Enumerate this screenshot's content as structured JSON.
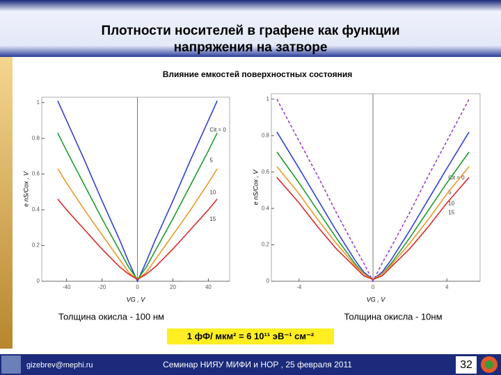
{
  "header": {
    "title_lines": [
      "Плотности носителей в графене как функции",
      "напряжения на затворе"
    ]
  },
  "subtitle": "Влияние емкостей поверхностных  состояния",
  "chart_data": [
    {
      "type": "line",
      "caption": "Толщина окисла  - 100 нм",
      "xlabel": "VG , V",
      "ylabel": "e nS/Cox , V",
      "x": [
        -45,
        -40,
        -30,
        -20,
        -10,
        -5,
        0,
        5,
        10,
        20,
        30,
        40,
        45
      ],
      "xlim": [
        -54,
        52
      ],
      "ylim": [
        0,
        1.03
      ],
      "xticks": [
        -40,
        -20,
        0,
        20,
        40
      ],
      "yticks": [
        0,
        0.2,
        0.4,
        0.6,
        0.8,
        1
      ],
      "series": [
        {
          "name": "Cit = 0",
          "color": "#2f3fd8",
          "values": [
            1.01,
            0.9,
            0.68,
            0.45,
            0.23,
            0.11,
            0,
            0.11,
            0.23,
            0.45,
            0.68,
            0.9,
            1.01
          ]
        },
        {
          "name": "5",
          "color": "#1e9a2a",
          "values": [
            0.83,
            0.73,
            0.54,
            0.35,
            0.17,
            0.08,
            0.01,
            0.08,
            0.17,
            0.35,
            0.54,
            0.73,
            0.83
          ]
        },
        {
          "name": "10",
          "color": "#e89a2a",
          "values": [
            0.63,
            0.55,
            0.4,
            0.26,
            0.12,
            0.05,
            0.01,
            0.05,
            0.12,
            0.26,
            0.4,
            0.55,
            0.63
          ]
        },
        {
          "name": "15",
          "color": "#d82a2a",
          "values": [
            0.46,
            0.4,
            0.29,
            0.18,
            0.08,
            0.04,
            0.01,
            0.04,
            0.08,
            0.18,
            0.29,
            0.4,
            0.46
          ]
        }
      ]
    },
    {
      "type": "line",
      "caption": "Толщина окисла  - 10нм",
      "xlabel": "VG , V",
      "ylabel": "e nS/Cox , V",
      "x": [
        -5.2,
        -4,
        -3,
        -2,
        -1,
        -0.5,
        0,
        0.5,
        1,
        2,
        3,
        4,
        5.2
      ],
      "xlim": [
        -5.5,
        5.8
      ],
      "ylim": [
        0,
        1.03
      ],
      "xticks": [
        -4,
        0,
        4
      ],
      "yticks": [
        0,
        0.2,
        0.4,
        0.6,
        0.8,
        1
      ],
      "series": [
        {
          "color": "#9a3ad0",
          "dashed": true,
          "values": [
            1,
            0.77,
            0.58,
            0.38,
            0.19,
            0.1,
            0,
            0.1,
            0.19,
            0.38,
            0.58,
            0.77,
            1
          ]
        },
        {
          "name": "Cit = 0",
          "color": "#2f3fd8",
          "values": [
            0.82,
            0.62,
            0.45,
            0.28,
            0.12,
            0.05,
            0.01,
            0.05,
            0.12,
            0.28,
            0.45,
            0.62,
            0.82
          ]
        },
        {
          "name": "5",
          "color": "#1e9a2a",
          "values": [
            0.71,
            0.54,
            0.39,
            0.24,
            0.1,
            0.04,
            0.01,
            0.04,
            0.1,
            0.24,
            0.39,
            0.54,
            0.71
          ]
        },
        {
          "name": "10",
          "color": "#e89a2a",
          "values": [
            0.63,
            0.48,
            0.34,
            0.21,
            0.09,
            0.04,
            0.01,
            0.04,
            0.09,
            0.21,
            0.34,
            0.48,
            0.63
          ]
        },
        {
          "name": "15",
          "color": "#d82a2a",
          "values": [
            0.57,
            0.43,
            0.3,
            0.18,
            0.08,
            0.03,
            0.01,
            0.03,
            0.08,
            0.18,
            0.3,
            0.43,
            0.57
          ]
        }
      ]
    }
  ],
  "formula": "1 фФ/ мкм² = 6 10¹¹ эВ⁻¹ см⁻²",
  "footer": {
    "email": "gizebrev@mephi.ru",
    "event": "Семинар  НИЯУ МИФИ и НОР ,   25 февраля  2011",
    "page": "32"
  }
}
